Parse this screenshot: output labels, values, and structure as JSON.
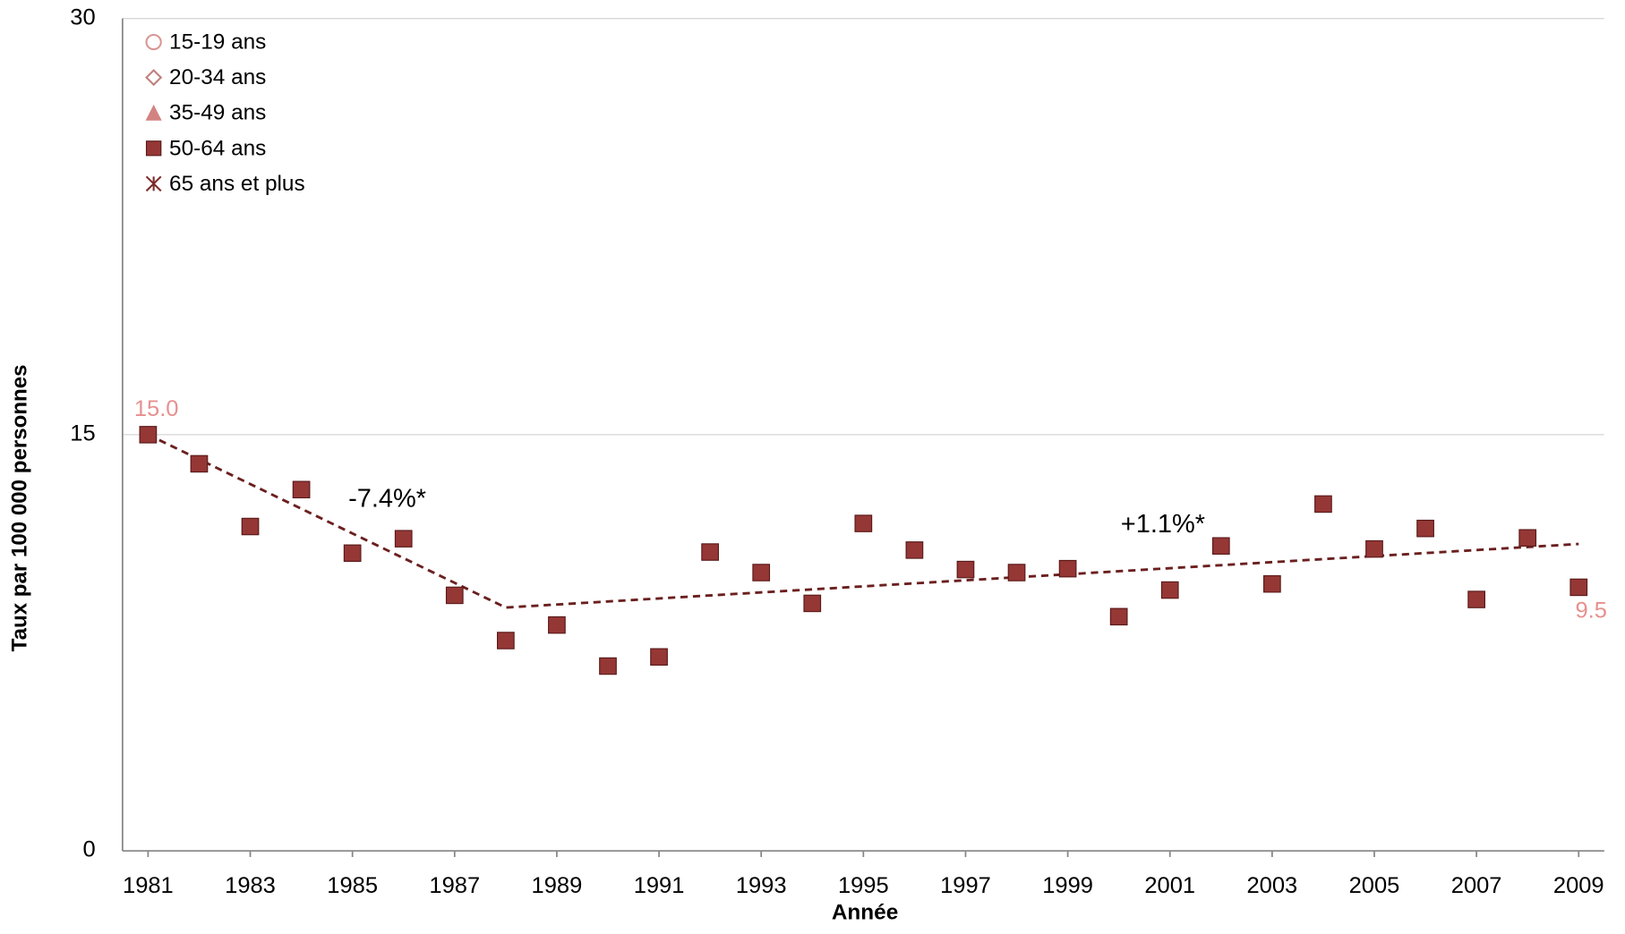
{
  "chart_data": {
    "type": "scatter",
    "x_label": "Année",
    "y_label": "Taux par 100 000 personnes",
    "x": [
      1981,
      1982,
      1983,
      1984,
      1985,
      1986,
      1987,
      1988,
      1989,
      1990,
      1991,
      1992,
      1993,
      1994,
      1995,
      1996,
      1997,
      1998,
      1999,
      2000,
      2001,
      2002,
      2003,
      2004,
      2005,
      2006,
      2007,
      2008,
      2009
    ],
    "series": [
      {
        "name": "15-19 ans",
        "marker": "circle",
        "color": "#d99694"
      },
      {
        "name": "20-34 ans",
        "marker": "diamond",
        "color": "#c0807e"
      },
      {
        "name": "35-49 ans",
        "marker": "triangle",
        "color": "#c0504d"
      },
      {
        "name": "50-64 ans",
        "marker": "square",
        "color": "#953735",
        "values": [
          15.0,
          13.95,
          11.69,
          13.02,
          10.73,
          11.25,
          9.21,
          7.58,
          8.14,
          6.66,
          6.99,
          10.77,
          10.03,
          8.92,
          11.8,
          10.84,
          10.14,
          10.03,
          10.17,
          8.44,
          9.4,
          10.99,
          9.62,
          12.5,
          10.88,
          11.62,
          9.06,
          11.28,
          9.5
        ],
        "value_labels": [
          "15.0",
          null,
          null,
          null,
          null,
          null,
          null,
          null,
          null,
          null,
          null,
          null,
          null,
          null,
          null,
          null,
          null,
          null,
          null,
          null,
          null,
          null,
          null,
          null,
          null,
          null,
          null,
          null,
          "9.5"
        ],
        "value_label_color": "#e6908f"
      },
      {
        "name": "65 ans et plus",
        "marker": "asterisk",
        "color": "#7b2c2a"
      }
    ],
    "trend": {
      "x": [
        1981,
        1988,
        2009
      ],
      "values": [
        15.0,
        8.77,
        11.06
      ],
      "color": "#6b1f1f",
      "dashed": true
    },
    "annotations": [
      "-7.4%*",
      "+1.1%*"
    ],
    "xlim": [
      1980.5,
      2009.5
    ],
    "xticks": [
      1981,
      1983,
      1985,
      1987,
      1989,
      1991,
      1993,
      1995,
      1997,
      1999,
      2001,
      2003,
      2005,
      2007,
      2009
    ],
    "ylim": [
      0,
      30
    ],
    "yticks": [
      0,
      15,
      30
    ],
    "grid": true,
    "legend": "top-left"
  }
}
